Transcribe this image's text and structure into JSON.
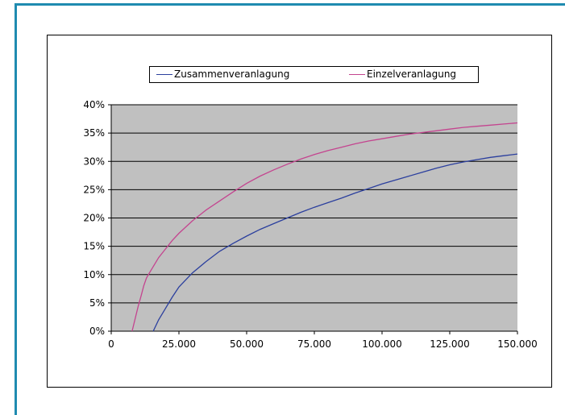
{
  "chart_data": {
    "type": "line",
    "title": "",
    "xlabel": "",
    "ylabel": "",
    "xlim": [
      0,
      150000
    ],
    "ylim": [
      0,
      0.4
    ],
    "x_tick_labels": [
      "0",
      "25.000",
      "50.000",
      "75.000",
      "100.000",
      "125.000",
      "150.000"
    ],
    "y_tick_labels": [
      "0%",
      "5%",
      "10%",
      "15%",
      "20%",
      "25%",
      "30%",
      "35%",
      "40%"
    ],
    "grid": "horizontal",
    "legend": "top",
    "plot_background": "#c0c0c0",
    "series": [
      {
        "name": "Zusammenveranlagung",
        "color": "#2b3f9e",
        "x": [
          15500,
          17500,
          20000,
          22500,
          25000,
          30000,
          35000,
          40000,
          45000,
          50000,
          55000,
          60000,
          65000,
          70000,
          75000,
          80000,
          85000,
          90000,
          95000,
          100000,
          105000,
          110000,
          115000,
          120000,
          125000,
          130000,
          135000,
          140000,
          145000,
          150000
        ],
        "y": [
          0.0,
          0.02,
          0.04,
          0.06,
          0.078,
          0.103,
          0.123,
          0.141,
          0.155,
          0.168,
          0.18,
          0.19,
          0.2,
          0.21,
          0.219,
          0.227,
          0.235,
          0.244,
          0.252,
          0.26,
          0.267,
          0.274,
          0.281,
          0.288,
          0.294,
          0.299,
          0.303,
          0.307,
          0.31,
          0.313
        ]
      },
      {
        "name": "Einzelveranlagung",
        "color": "#c4448f",
        "x": [
          7700,
          9000,
          10000,
          11000,
          12000,
          13000,
          14000,
          15000,
          17500,
          20000,
          22500,
          25000,
          30000,
          35000,
          40000,
          45000,
          50000,
          55000,
          60000,
          65000,
          70000,
          75000,
          80000,
          85000,
          90000,
          95000,
          100000,
          105000,
          110000,
          115000,
          120000,
          125000,
          130000,
          135000,
          140000,
          145000,
          150000
        ],
        "y": [
          0.0,
          0.025,
          0.045,
          0.062,
          0.08,
          0.094,
          0.102,
          0.11,
          0.13,
          0.145,
          0.16,
          0.173,
          0.195,
          0.214,
          0.23,
          0.246,
          0.261,
          0.274,
          0.285,
          0.295,
          0.304,
          0.312,
          0.319,
          0.325,
          0.331,
          0.336,
          0.34,
          0.344,
          0.348,
          0.351,
          0.354,
          0.357,
          0.36,
          0.362,
          0.364,
          0.366,
          0.368
        ]
      }
    ]
  }
}
